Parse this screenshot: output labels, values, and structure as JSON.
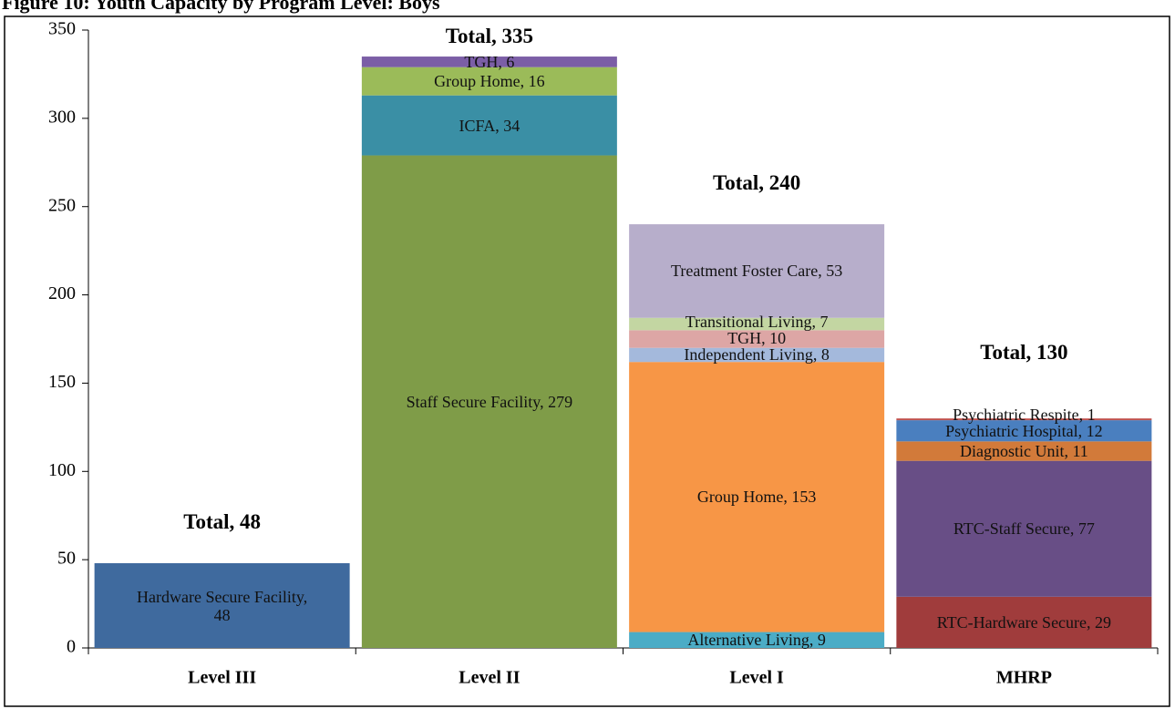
{
  "chart_data": {
    "type": "stacked_bar",
    "title": "Figure 10: Youth Capacity by Program Level: Boys",
    "categories": [
      "Level III",
      "Level II",
      "Level I",
      "MHRP"
    ],
    "stacks": [
      {
        "values": [
          48
        ],
        "colors": [
          "#3f6a9e"
        ],
        "value_labels": [
          "Hardware Secure Facility, 48"
        ]
      },
      {
        "values": [
          279,
          34,
          16,
          6
        ],
        "colors": [
          "#7f9c48",
          "#3a8fa5",
          "#9bbb59",
          "#7b5ea6"
        ],
        "value_labels": [
          "Staff Secure Facility, 279",
          "ICFA, 34",
          "Group Home, 16",
          "TGH, 6"
        ]
      },
      {
        "values": [
          9,
          153,
          8,
          10,
          7,
          53
        ],
        "colors": [
          "#4bacc6",
          "#f79646",
          "#a4b9dc",
          "#dda6a5",
          "#c3d6a2",
          "#b7aecb"
        ],
        "value_labels": [
          "Alternative Living, 9",
          "Group Home, 153",
          "Independent Living, 8",
          "TGH, 10",
          "Transitional Living, 7",
          "Treatment Foster Care, 53"
        ]
      },
      {
        "values": [
          29,
          77,
          11,
          12,
          1
        ],
        "colors": [
          "#a03c3c",
          "#684e86",
          "#d27a3a",
          "#4a7fbf",
          "#c0504d"
        ],
        "value_labels": [
          "RTC-Hardware Secure, 29",
          "RTC-Staff Secure, 77",
          "Diagnostic Unit, 11",
          "Psychiatric Hospital, 12",
          "Psychiatric Respite, 1"
        ]
      }
    ],
    "totals": [
      48,
      335,
      240,
      130
    ],
    "total_labels": [
      "Total, 48",
      "Total, 335",
      "Total, 240",
      "Total, 130"
    ],
    "ylim": [
      0,
      350
    ],
    "yticks": [
      0,
      50,
      100,
      150,
      200,
      250,
      300,
      350
    ]
  }
}
